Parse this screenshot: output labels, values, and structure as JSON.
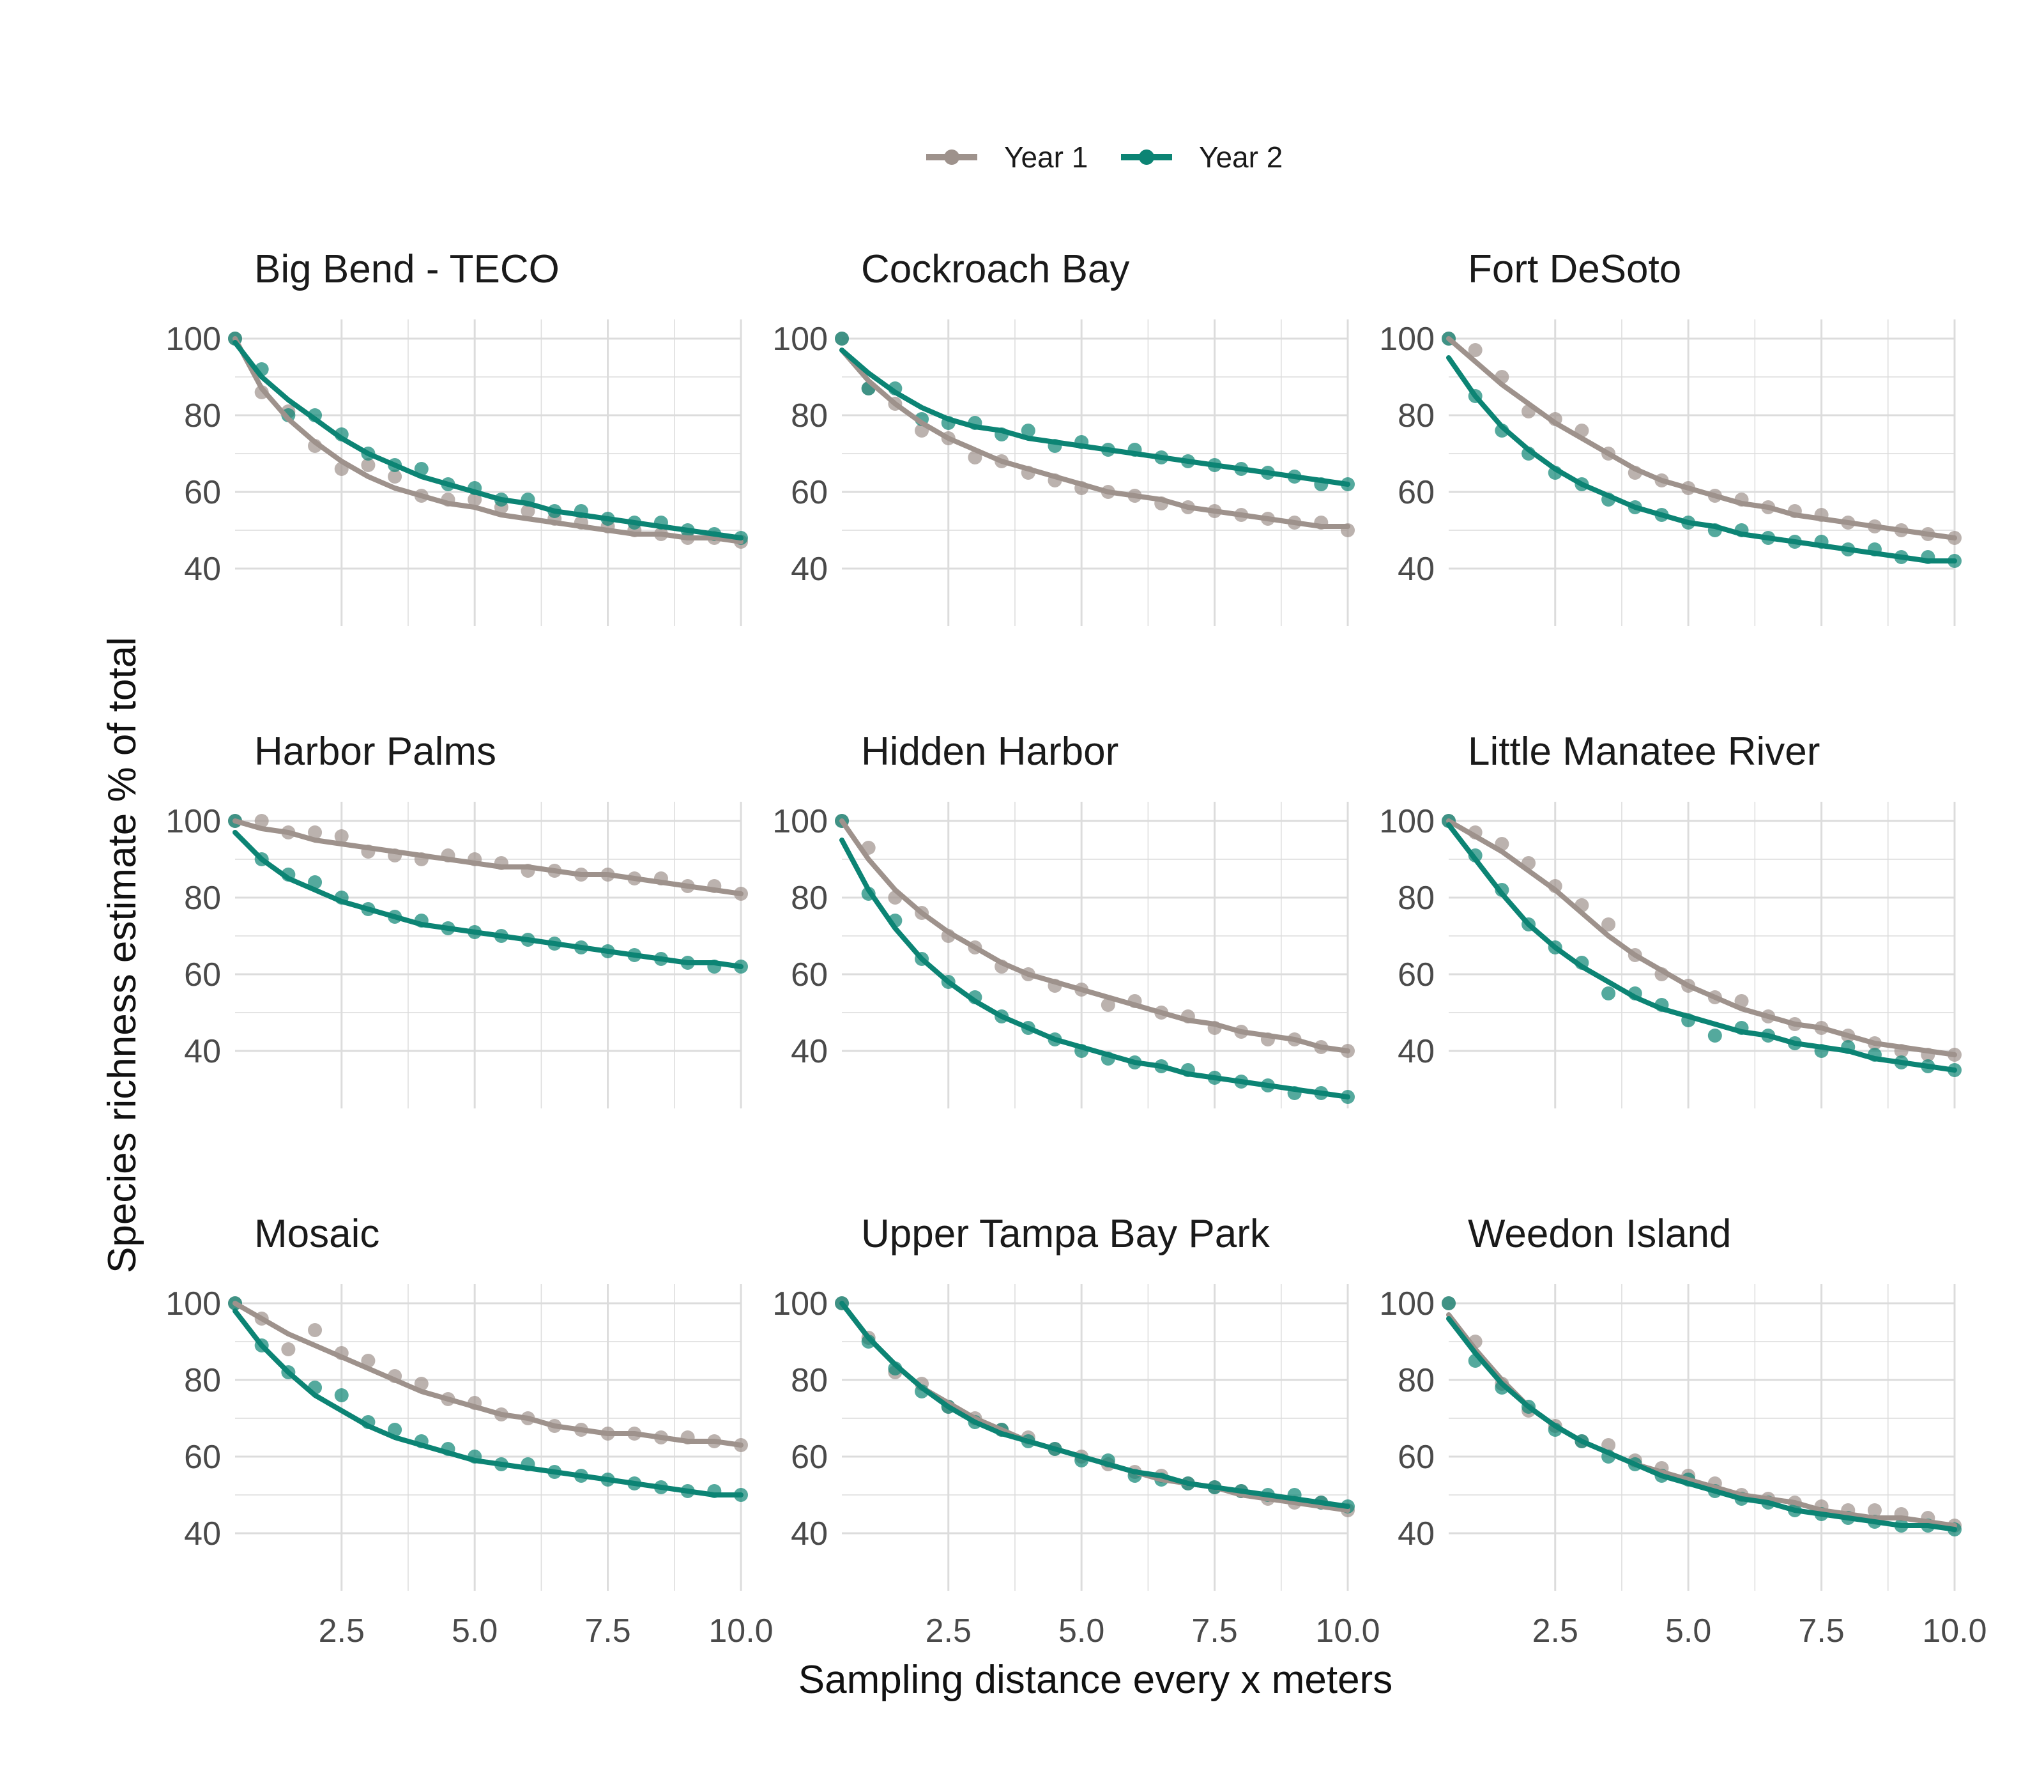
{
  "chart_data": {
    "type": "line",
    "layout": "faceted-3x3",
    "xlabel": "Sampling distance every x meters",
    "ylabel": "Species richness estimate % of total",
    "x_ticks": [
      "2.5",
      "5.0",
      "7.5",
      "10.0"
    ],
    "y_ticks": [
      "40",
      "60",
      "80",
      "100"
    ],
    "xlim": [
      0.5,
      10.0
    ],
    "ylim": [
      25,
      105
    ],
    "grid": true,
    "legend_placement": "top-center",
    "x": [
      0.5,
      1,
      1.5,
      2,
      2.5,
      3,
      3.5,
      4,
      4.5,
      5,
      5.5,
      6,
      6.5,
      7,
      7.5,
      8,
      8.5,
      9,
      9.5,
      10
    ],
    "series": [
      {
        "name": "Year 1",
        "color": "#9e928c"
      },
      {
        "name": "Year 2",
        "color": "#0c8474"
      }
    ],
    "panels": [
      {
        "title": "Big Bend - TECO",
        "year1_points": [
          100,
          86,
          81,
          72,
          66,
          67,
          64,
          59,
          58,
          58,
          56,
          55,
          53,
          52,
          51,
          50,
          49,
          48,
          48,
          47
        ],
        "year1_fit": [
          100,
          87,
          79,
          73,
          68,
          64,
          61,
          59,
          57,
          56,
          54,
          53,
          52,
          51,
          50,
          49,
          49,
          48,
          48,
          47
        ],
        "year2_points": [
          100,
          92,
          80,
          80,
          75,
          70,
          67,
          66,
          62,
          61,
          58,
          58,
          55,
          55,
          53,
          52,
          52,
          50,
          49,
          48
        ],
        "year2_fit": [
          99,
          90,
          84,
          79,
          74,
          70,
          67,
          64,
          62,
          60,
          58,
          57,
          55,
          54,
          53,
          52,
          51,
          50,
          49,
          48
        ]
      },
      {
        "title": "Cockroach Bay",
        "year1_points": [
          100,
          87,
          83,
          76,
          74,
          69,
          68,
          65,
          63,
          61,
          60,
          59,
          57,
          56,
          55,
          54,
          53,
          52,
          52,
          50
        ],
        "year1_fit": [
          97,
          89,
          83,
          78,
          74,
          71,
          68,
          66,
          64,
          62,
          60,
          59,
          58,
          56,
          55,
          54,
          53,
          52,
          51,
          51
        ],
        "year2_points": [
          100,
          87,
          87,
          79,
          78,
          78,
          75,
          76,
          72,
          73,
          71,
          71,
          69,
          68,
          67,
          66,
          65,
          64,
          62,
          62
        ],
        "year2_fit": [
          97,
          91,
          86,
          82,
          79,
          77,
          76,
          74,
          73,
          72,
          71,
          70,
          69,
          68,
          67,
          66,
          65,
          64,
          63,
          62
        ]
      },
      {
        "title": "Fort DeSoto",
        "year1_points": [
          100,
          97,
          90,
          81,
          79,
          76,
          70,
          65,
          63,
          61,
          59,
          58,
          56,
          55,
          54,
          52,
          51,
          50,
          49,
          48
        ],
        "year1_fit": [
          100,
          94,
          88,
          83,
          78,
          74,
          70,
          66,
          63,
          61,
          59,
          57,
          56,
          54,
          53,
          52,
          51,
          50,
          49,
          48
        ],
        "year2_points": [
          100,
          85,
          76,
          70,
          65,
          62,
          58,
          56,
          54,
          52,
          50,
          50,
          48,
          47,
          47,
          45,
          45,
          43,
          43,
          42
        ],
        "year2_fit": [
          95,
          85,
          77,
          71,
          66,
          62,
          59,
          56,
          54,
          52,
          51,
          49,
          48,
          47,
          46,
          45,
          44,
          43,
          42,
          42
        ]
      },
      {
        "title": "Harbor Palms",
        "year1_points": [
          100,
          100,
          97,
          97,
          96,
          92,
          91,
          90,
          91,
          90,
          89,
          87,
          87,
          86,
          86,
          85,
          85,
          83,
          83,
          81
        ],
        "year1_fit": [
          100,
          98,
          97,
          95,
          94,
          93,
          92,
          91,
          90,
          89,
          88,
          88,
          87,
          86,
          86,
          85,
          84,
          83,
          82,
          81
        ],
        "year2_points": [
          100,
          90,
          86,
          84,
          80,
          77,
          75,
          74,
          72,
          71,
          70,
          69,
          68,
          67,
          66,
          65,
          64,
          63,
          62,
          62
        ],
        "year2_fit": [
          97,
          90,
          85,
          82,
          79,
          77,
          75,
          73,
          72,
          71,
          70,
          69,
          68,
          67,
          66,
          65,
          64,
          63,
          63,
          62
        ]
      },
      {
        "title": "Hidden Harbor",
        "year1_points": [
          100,
          93,
          80,
          76,
          70,
          67,
          62,
          60,
          57,
          56,
          52,
          53,
          50,
          49,
          46,
          45,
          43,
          43,
          41,
          40
        ],
        "year1_fit": [
          100,
          90,
          82,
          76,
          71,
          67,
          63,
          60,
          58,
          56,
          54,
          52,
          50,
          48,
          47,
          45,
          44,
          43,
          41,
          40
        ],
        "year2_points": [
          100,
          81,
          74,
          64,
          58,
          54,
          49,
          46,
          43,
          40,
          38,
          37,
          36,
          35,
          33,
          32,
          31,
          29,
          29,
          28
        ],
        "year2_fit": [
          95,
          82,
          72,
          64,
          58,
          53,
          49,
          46,
          43,
          41,
          39,
          37,
          36,
          34,
          33,
          32,
          31,
          30,
          29,
          28
        ]
      },
      {
        "title": "Little Manatee River",
        "year1_points": [
          100,
          97,
          94,
          89,
          83,
          78,
          73,
          65,
          60,
          57,
          54,
          53,
          49,
          47,
          46,
          44,
          42,
          40,
          39,
          39
        ],
        "year1_fit": [
          100,
          96,
          92,
          87,
          82,
          76,
          70,
          65,
          61,
          57,
          54,
          51,
          49,
          47,
          46,
          44,
          42,
          41,
          40,
          39
        ],
        "year2_points": [
          100,
          91,
          82,
          73,
          67,
          63,
          55,
          55,
          52,
          48,
          44,
          46,
          44,
          42,
          40,
          41,
          39,
          37,
          36,
          35
        ],
        "year2_fit": [
          99,
          90,
          81,
          73,
          67,
          62,
          58,
          54,
          51,
          49,
          47,
          45,
          44,
          42,
          41,
          40,
          38,
          37,
          36,
          35
        ]
      },
      {
        "title": "Mosaic",
        "year1_points": [
          100,
          96,
          88,
          93,
          87,
          85,
          81,
          79,
          75,
          74,
          71,
          70,
          68,
          67,
          66,
          66,
          65,
          65,
          64,
          63
        ],
        "year1_fit": [
          100,
          96,
          92,
          89,
          86,
          83,
          80,
          77,
          75,
          73,
          71,
          70,
          68,
          67,
          66,
          66,
          65,
          64,
          64,
          63
        ],
        "year2_points": [
          100,
          89,
          82,
          78,
          76,
          69,
          67,
          64,
          62,
          60,
          58,
          58,
          56,
          55,
          54,
          53,
          52,
          51,
          51,
          50
        ],
        "year2_fit": [
          98,
          89,
          82,
          76,
          72,
          68,
          65,
          63,
          61,
          59,
          58,
          57,
          56,
          55,
          54,
          53,
          52,
          51,
          50,
          50
        ]
      },
      {
        "title": "Upper Tampa Bay Park",
        "year1_points": [
          100,
          91,
          82,
          79,
          73,
          70,
          67,
          65,
          62,
          60,
          58,
          56,
          55,
          53,
          52,
          51,
          49,
          48,
          48,
          46
        ],
        "year1_fit": [
          100,
          91,
          84,
          78,
          74,
          70,
          67,
          64,
          62,
          60,
          58,
          56,
          54,
          53,
          52,
          50,
          49,
          48,
          47,
          46
        ],
        "year2_points": [
          100,
          90,
          83,
          77,
          73,
          69,
          67,
          64,
          62,
          59,
          59,
          55,
          54,
          53,
          52,
          51,
          50,
          50,
          48,
          47
        ],
        "year2_fit": [
          100,
          91,
          84,
          78,
          73,
          69,
          66,
          64,
          62,
          60,
          58,
          56,
          55,
          53,
          52,
          51,
          50,
          49,
          48,
          47
        ]
      },
      {
        "title": "Weedon Island",
        "year1_points": [
          100,
          90,
          79,
          72,
          68,
          64,
          63,
          59,
          57,
          55,
          53,
          50,
          49,
          48,
          47,
          46,
          46,
          45,
          44,
          42
        ],
        "year1_fit": [
          97,
          88,
          80,
          73,
          68,
          64,
          61,
          58,
          56,
          54,
          52,
          50,
          49,
          48,
          46,
          45,
          44,
          44,
          43,
          42
        ],
        "year2_points": [
          100,
          85,
          78,
          73,
          67,
          64,
          60,
          58,
          55,
          54,
          51,
          49,
          48,
          46,
          45,
          44,
          43,
          42,
          42,
          41
        ],
        "year2_fit": [
          96,
          87,
          79,
          73,
          68,
          64,
          61,
          58,
          55,
          53,
          51,
          49,
          48,
          46,
          45,
          44,
          43,
          42,
          42,
          41
        ]
      }
    ]
  }
}
